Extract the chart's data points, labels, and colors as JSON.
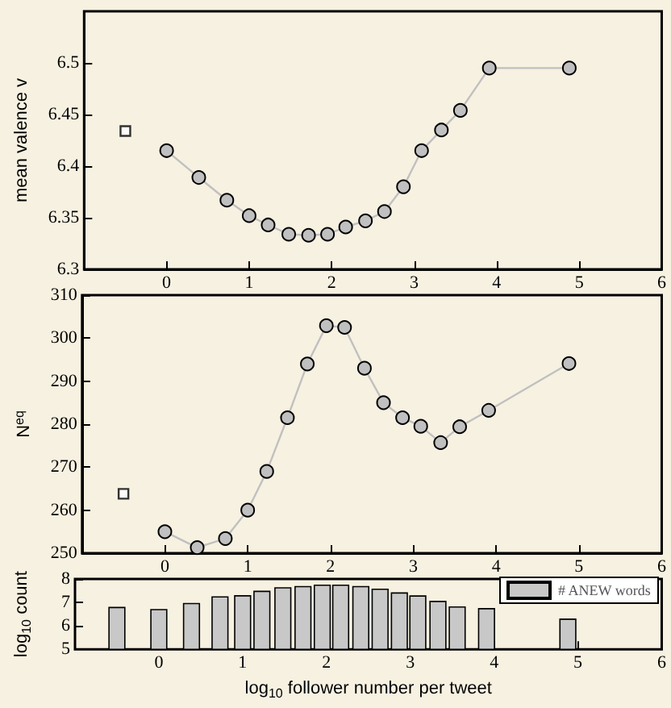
{
  "chart_data": [
    {
      "type": "line",
      "ylabel": "mean valence v",
      "xlim": [
        -1,
        6
      ],
      "xticks": [
        0,
        1,
        2,
        3,
        4,
        5,
        6
      ],
      "ylim": [
        6.3,
        6.55
      ],
      "yticks": [
        6.3,
        6.35,
        6.4,
        6.45,
        6.5
      ],
      "series": [
        {
          "type": "scatter",
          "marker": "square",
          "color": "#000000",
          "x": [
            -0.5
          ],
          "values": [
            6.434
          ]
        },
        {
          "marker": "circle",
          "color": "#c0c0c0",
          "x": [
            0,
            0.39,
            0.73,
            1.0,
            1.23,
            1.48,
            1.72,
            1.95,
            2.17,
            2.41,
            2.64,
            2.87,
            3.09,
            3.33,
            3.56,
            3.91,
            4.88
          ],
          "values": [
            6.415,
            6.389,
            6.367,
            6.352,
            6.343,
            6.334,
            6.333,
            6.334,
            6.341,
            6.347,
            6.356,
            6.38,
            6.415,
            6.435,
            6.454,
            6.495,
            6.495
          ]
        }
      ]
    },
    {
      "type": "line",
      "ylabel": "N$^{eq}$",
      "xlim": [
        -1,
        6
      ],
      "xticks": [
        0,
        1,
        2,
        3,
        4,
        5,
        6
      ],
      "ylim": [
        250,
        310
      ],
      "yticks": [
        250,
        260,
        270,
        280,
        290,
        300,
        310
      ],
      "series": [
        {
          "type": "scatter",
          "marker": "square",
          "color": "#000000",
          "x": [
            -0.5
          ],
          "values": [
            263.8
          ]
        },
        {
          "marker": "circle",
          "color": "#c0c0c0",
          "x": [
            0,
            0.39,
            0.73,
            1.0,
            1.23,
            1.48,
            1.72,
            1.95,
            2.17,
            2.41,
            2.64,
            2.87,
            3.09,
            3.33,
            3.56,
            3.91,
            4.88
          ],
          "values": [
            255,
            251.3,
            253.4,
            260,
            269,
            281.5,
            294,
            302.9,
            302.5,
            293,
            285,
            281.5,
            279.5,
            275.7,
            279.4,
            283.2,
            294.1
          ]
        }
      ]
    },
    {
      "type": "bar",
      "xlabel": "log$_{10}$ follower number per tweet",
      "ylabel": "log$_{10}$ count",
      "xlim": [
        -1,
        6
      ],
      "xticks": [
        0,
        1,
        2,
        3,
        4,
        5,
        6
      ],
      "ylim": [
        5,
        8
      ],
      "yticks": [
        5,
        6,
        7,
        8
      ],
      "legend": "top right",
      "x": [
        -0.5,
        0,
        0.39,
        0.73,
        1.0,
        1.23,
        1.48,
        1.72,
        1.95,
        2.17,
        2.41,
        2.64,
        2.87,
        3.09,
        3.33,
        3.56,
        3.91,
        4.88
      ],
      "series": [
        {
          "name": "# ANEW words",
          "color": "#c8c8c8",
          "values": [
            6.81,
            6.72,
            6.98,
            7.26,
            7.31,
            7.5,
            7.65,
            7.7,
            7.76,
            7.76,
            7.7,
            7.59,
            7.43,
            7.3,
            7.07,
            6.83,
            6.76,
            6.31
          ]
        }
      ]
    }
  ]
}
